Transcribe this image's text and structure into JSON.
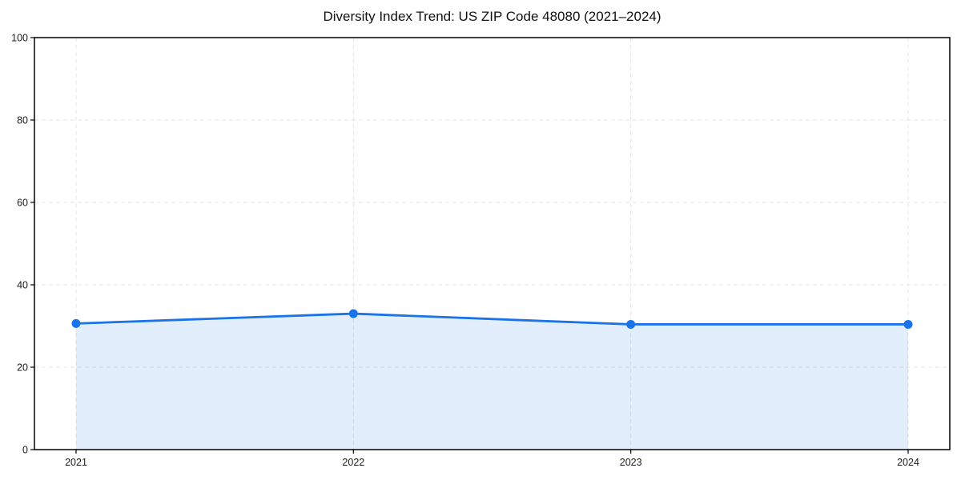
{
  "chart_data": {
    "type": "area",
    "title": "Diversity Index Trend: US ZIP Code 48080 (2021–2024)",
    "categories": [
      "2021",
      "2022",
      "2023",
      "2024"
    ],
    "series": [
      {
        "name": "Diversity Index",
        "values": [
          30.6,
          33.0,
          30.4,
          30.4
        ]
      }
    ],
    "xlabel": "",
    "ylabel": "",
    "ylim": [
      0,
      100
    ],
    "yticks": [
      0,
      20,
      40,
      60,
      80,
      100
    ],
    "grid": true,
    "grid_style": "dashed",
    "legend": "none",
    "colors": {
      "line": "#1a73e8",
      "marker": "#1a73e8",
      "fill": "#1a73e8",
      "fill_opacity": 0.12,
      "grid": "#e4e4e4",
      "axis": "#000000",
      "tick_label": "#1a1a1a",
      "title": "#111111"
    }
  }
}
